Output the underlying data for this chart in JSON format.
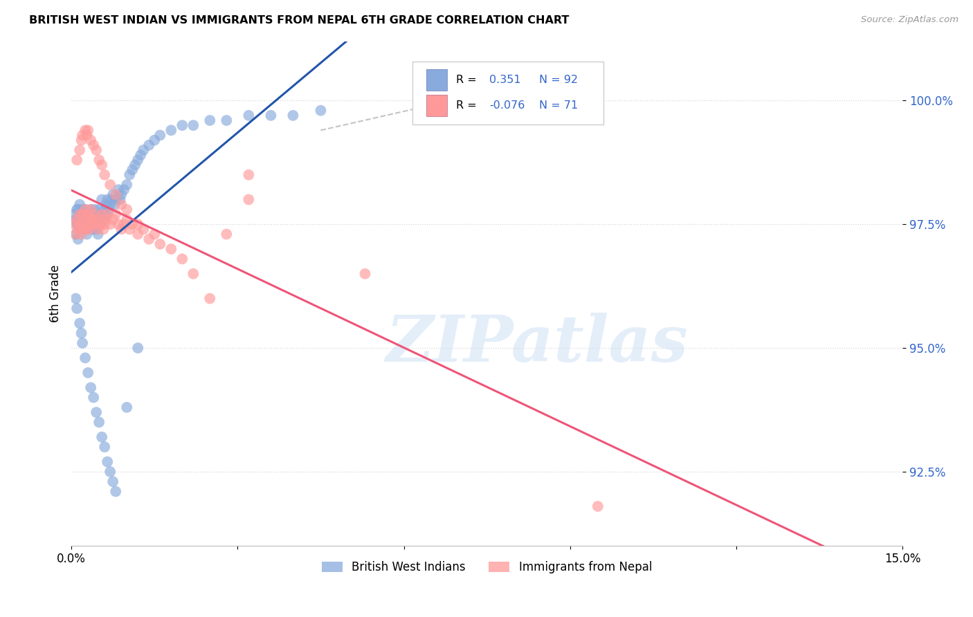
{
  "title": "BRITISH WEST INDIAN VS IMMIGRANTS FROM NEPAL 6TH GRADE CORRELATION CHART",
  "source_text": "Source: ZipAtlas.com",
  "ylabel": "6th Grade",
  "ytick_values": [
    92.5,
    95.0,
    97.5,
    100.0
  ],
  "xlim": [
    0.0,
    15.0
  ],
  "ylim": [
    91.0,
    101.2
  ],
  "legend_val1": "0.351",
  "legend_n1": "92",
  "legend_val2": "-0.076",
  "legend_n2": "71",
  "blue_color": "#88AADD",
  "pink_color": "#FF9999",
  "blue_line_color": "#2255AA",
  "pink_line_color": "#EE5577",
  "blue_scatter_x": [
    0.05,
    0.08,
    0.08,
    0.1,
    0.1,
    0.12,
    0.12,
    0.12,
    0.15,
    0.15,
    0.15,
    0.18,
    0.18,
    0.2,
    0.2,
    0.22,
    0.22,
    0.25,
    0.25,
    0.28,
    0.28,
    0.3,
    0.3,
    0.32,
    0.35,
    0.35,
    0.38,
    0.38,
    0.4,
    0.42,
    0.42,
    0.45,
    0.45,
    0.48,
    0.5,
    0.5,
    0.52,
    0.55,
    0.55,
    0.58,
    0.6,
    0.62,
    0.65,
    0.65,
    0.68,
    0.7,
    0.72,
    0.75,
    0.78,
    0.8,
    0.85,
    0.88,
    0.9,
    0.95,
    1.0,
    1.05,
    1.1,
    1.15,
    1.2,
    1.25,
    1.3,
    1.4,
    1.5,
    1.6,
    1.8,
    2.0,
    2.2,
    2.5,
    2.8,
    3.2,
    3.6,
    4.0,
    4.5,
    0.08,
    0.1,
    0.15,
    0.18,
    0.2,
    0.25,
    0.3,
    0.35,
    0.4,
    0.45,
    0.5,
    0.55,
    0.6,
    0.65,
    0.7,
    0.75,
    0.8,
    1.0,
    1.2
  ],
  "blue_scatter_y": [
    97.7,
    97.3,
    97.6,
    97.5,
    97.8,
    97.2,
    97.5,
    97.8,
    97.4,
    97.6,
    97.9,
    97.5,
    97.7,
    97.6,
    97.8,
    97.4,
    97.7,
    97.5,
    97.8,
    97.3,
    97.6,
    97.5,
    97.7,
    97.6,
    97.5,
    97.8,
    97.4,
    97.7,
    97.6,
    97.5,
    97.8,
    97.4,
    97.7,
    97.3,
    97.6,
    97.8,
    97.5,
    97.7,
    98.0,
    97.6,
    97.8,
    97.9,
    97.7,
    98.0,
    97.8,
    97.9,
    98.0,
    98.1,
    97.9,
    98.0,
    98.2,
    98.0,
    98.1,
    98.2,
    98.3,
    98.5,
    98.6,
    98.7,
    98.8,
    98.9,
    99.0,
    99.1,
    99.2,
    99.3,
    99.4,
    99.5,
    99.5,
    99.6,
    99.6,
    99.7,
    99.7,
    99.7,
    99.8,
    96.0,
    95.8,
    95.5,
    95.3,
    95.1,
    94.8,
    94.5,
    94.2,
    94.0,
    93.7,
    93.5,
    93.2,
    93.0,
    92.7,
    92.5,
    92.3,
    92.1,
    93.8,
    95.0
  ],
  "pink_scatter_x": [
    0.05,
    0.08,
    0.1,
    0.12,
    0.15,
    0.15,
    0.18,
    0.2,
    0.2,
    0.22,
    0.25,
    0.25,
    0.28,
    0.3,
    0.3,
    0.32,
    0.35,
    0.35,
    0.38,
    0.4,
    0.42,
    0.45,
    0.48,
    0.5,
    0.52,
    0.55,
    0.58,
    0.6,
    0.62,
    0.65,
    0.7,
    0.75,
    0.8,
    0.85,
    0.9,
    0.95,
    1.0,
    1.05,
    1.1,
    1.2,
    1.3,
    1.4,
    1.5,
    1.6,
    1.8,
    2.0,
    2.2,
    2.5,
    2.8,
    3.2,
    0.1,
    0.15,
    0.18,
    0.2,
    0.25,
    0.28,
    0.3,
    0.35,
    0.4,
    0.45,
    0.5,
    0.55,
    0.6,
    0.7,
    0.8,
    0.9,
    1.0,
    1.2,
    3.2,
    5.3,
    9.5
  ],
  "pink_scatter_y": [
    97.5,
    97.3,
    97.6,
    97.4,
    97.5,
    97.7,
    97.3,
    97.5,
    97.7,
    97.4,
    97.6,
    97.8,
    97.4,
    97.5,
    97.7,
    97.4,
    97.6,
    97.8,
    97.5,
    97.6,
    97.7,
    97.5,
    97.4,
    97.6,
    97.5,
    97.7,
    97.4,
    97.5,
    97.6,
    97.7,
    97.5,
    97.6,
    97.7,
    97.5,
    97.4,
    97.5,
    97.6,
    97.4,
    97.5,
    97.3,
    97.4,
    97.2,
    97.3,
    97.1,
    97.0,
    96.8,
    96.5,
    96.0,
    97.3,
    98.5,
    98.8,
    99.0,
    99.2,
    99.3,
    99.4,
    99.3,
    99.4,
    99.2,
    99.1,
    99.0,
    98.8,
    98.7,
    98.5,
    98.3,
    98.1,
    97.9,
    97.8,
    97.5,
    98.0,
    96.5,
    91.8
  ],
  "watermark_text": "ZIPatlas",
  "background_color": "#ffffff",
  "grid_color": "#cccccc",
  "source_color": "#999999",
  "ytick_color": "#3366CC",
  "xtick_color": "#000000"
}
